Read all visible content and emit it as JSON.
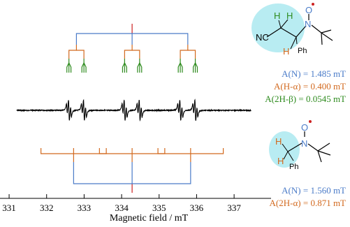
{
  "chart_data": {
    "type": "line",
    "title": "",
    "xlabel": "Magnetic field / mT",
    "ylabel": "",
    "xlim": [
      330.85,
      337.65
    ],
    "xticks": [
      331,
      332,
      333,
      334,
      335,
      336,
      337
    ],
    "grid": false,
    "center_field": 334.28,
    "series": [
      {
        "kind": "esr-derivative-spectrum",
        "color": "#000000",
        "lines": {
          "N": 1.485,
          "H_alpha": 0.4,
          "H_beta": 0.0545
        }
      }
    ]
  },
  "colors": {
    "nitrogen": "#4a7bc8",
    "h_alpha": "#d2691e",
    "h_beta": "#2e8b1e",
    "center_marker": "#cc2222",
    "highlight": "#b8ecf2",
    "radical_dot": "#cc2222"
  },
  "molecule_top": {
    "atoms": {
      "h1": "H",
      "h2": "H",
      "n": "N",
      "o": "O",
      "nc": "NC",
      "h3": "H",
      "ph": "Ph"
    },
    "icons": [
      "methyl-branch-icon",
      "tert-butyl-icon"
    ]
  },
  "hfc_top": {
    "n": "A(N) = 1.485 mT",
    "h_alpha": "A(H-α) = 0.400 mT",
    "h_beta": "A(2H-β) = 0.0545 mT"
  },
  "molecule_bottom": {
    "atoms": {
      "o": "O",
      "n": "N",
      "h1": "H",
      "h2": "H",
      "ph": "Ph"
    }
  },
  "hfc_bottom": {
    "n": "A(N) = 1.560 mT",
    "h_alpha": "A(2H-α) = 0.871 mT"
  },
  "stick_bottom": {
    "N": 1.56,
    "H_alpha": 0.871
  }
}
